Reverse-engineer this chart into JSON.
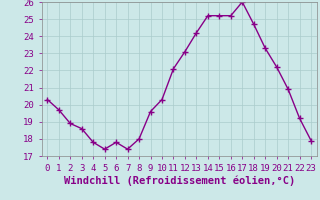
{
  "x": [
    0,
    1,
    2,
    3,
    4,
    5,
    6,
    7,
    8,
    9,
    10,
    11,
    12,
    13,
    14,
    15,
    16,
    17,
    18,
    19,
    20,
    21,
    22,
    23
  ],
  "y": [
    20.3,
    19.7,
    18.9,
    18.6,
    17.8,
    17.4,
    17.8,
    17.4,
    18.0,
    19.6,
    20.3,
    22.1,
    23.1,
    24.2,
    25.2,
    25.2,
    25.2,
    26.0,
    24.7,
    23.3,
    22.2,
    20.9,
    19.2,
    17.9
  ],
  "line_color": "#880088",
  "marker": "+",
  "marker_size": 4,
  "line_width": 1.0,
  "xlabel": "Windchill (Refroidissement éolien,°C)",
  "xlabel_fontsize": 7.5,
  "xlabel_color": "#880088",
  "ylim": [
    17,
    26
  ],
  "xlim": [
    -0.5,
    23.5
  ],
  "yticks": [
    17,
    18,
    19,
    20,
    21,
    22,
    23,
    24,
    25,
    26
  ],
  "xticks": [
    0,
    1,
    2,
    3,
    4,
    5,
    6,
    7,
    8,
    9,
    10,
    11,
    12,
    13,
    14,
    15,
    16,
    17,
    18,
    19,
    20,
    21,
    22,
    23
  ],
  "tick_fontsize": 6.5,
  "tick_color": "#880088",
  "background_color": "#cce8e8",
  "grid_color": "#aacccc",
  "grid_linewidth": 0.5,
  "spine_color": "#888888"
}
